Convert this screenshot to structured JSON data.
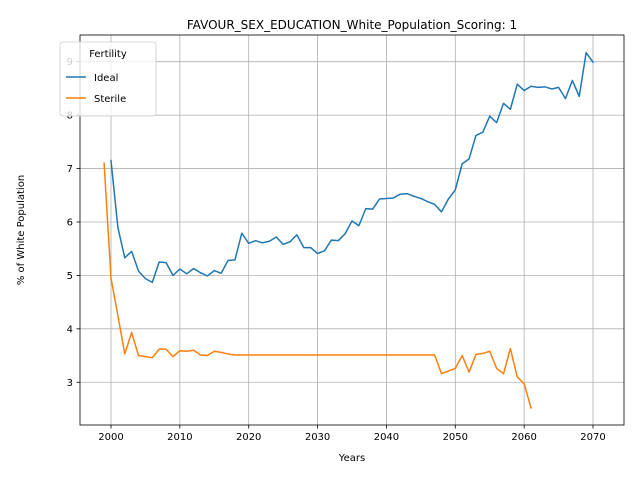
{
  "chart_data": {
    "type": "line",
    "title": "FAVOUR_SEX_EDUCATION_White_Population_Scoring: 1",
    "xlabel": "Years",
    "ylabel": "% of White Population",
    "xlim": [
      1995.5,
      2074.5
    ],
    "ylim": [
      2.2,
      9.5
    ],
    "xticks": [
      2000,
      2010,
      2020,
      2030,
      2040,
      2050,
      2060,
      2070
    ],
    "yticks": [
      3,
      4,
      5,
      6,
      7,
      8,
      9
    ],
    "grid": true,
    "legend": {
      "title": "Fertility",
      "position": "top-left"
    },
    "series": [
      {
        "name": "Ideal",
        "color": "#1f77b4",
        "x": [
          2000,
          2001,
          2002,
          2003,
          2004,
          2005,
          2006,
          2007,
          2008,
          2009,
          2010,
          2011,
          2012,
          2013,
          2014,
          2015,
          2016,
          2017,
          2018,
          2019,
          2020,
          2021,
          2022,
          2023,
          2024,
          2025,
          2026,
          2027,
          2028,
          2029,
          2030,
          2031,
          2032,
          2033,
          2034,
          2035,
          2036,
          2037,
          2038,
          2039,
          2040,
          2041,
          2042,
          2043,
          2044,
          2045,
          2046,
          2047,
          2048,
          2049,
          2050,
          2051,
          2052,
          2053,
          2054,
          2055,
          2056,
          2057,
          2058,
          2059,
          2060,
          2061,
          2062,
          2063,
          2064,
          2065,
          2066,
          2067,
          2068,
          2069,
          2070
        ],
        "y": [
          7.15,
          5.9,
          5.33,
          5.45,
          5.08,
          4.94,
          4.87,
          5.25,
          5.24,
          5.0,
          5.12,
          5.03,
          5.13,
          5.05,
          4.99,
          5.09,
          5.04,
          5.28,
          5.29,
          5.79,
          5.6,
          5.65,
          5.61,
          5.64,
          5.72,
          5.58,
          5.63,
          5.76,
          5.52,
          5.52,
          5.41,
          5.46,
          5.66,
          5.65,
          5.78,
          6.02,
          5.93,
          6.25,
          6.24,
          6.43,
          6.44,
          6.45,
          6.52,
          6.53,
          6.48,
          6.44,
          6.38,
          6.33,
          6.19,
          6.43,
          6.6,
          7.09,
          7.18,
          7.62,
          7.68,
          7.98,
          7.86,
          8.22,
          8.11,
          8.58,
          8.46,
          8.54,
          8.52,
          8.53,
          8.49,
          8.52,
          8.31,
          8.65,
          8.35,
          9.17,
          8.99
        ]
      },
      {
        "name": "Sterile",
        "color": "#ff7f0e",
        "x": [
          1999,
          2000,
          2001,
          2002,
          2003,
          2004,
          2005,
          2006,
          2007,
          2008,
          2009,
          2010,
          2011,
          2012,
          2013,
          2014,
          2015,
          2016,
          2017,
          2018,
          2019,
          2020,
          2021,
          2022,
          2023,
          2024,
          2025,
          2026,
          2027,
          2028,
          2029,
          2030,
          2031,
          2032,
          2033,
          2034,
          2035,
          2036,
          2037,
          2038,
          2039,
          2040,
          2041,
          2042,
          2043,
          2044,
          2045,
          2046,
          2047,
          2048,
          2049,
          2050,
          2051,
          2052,
          2053,
          2054,
          2055,
          2056,
          2057,
          2058,
          2059,
          2060,
          2061
        ],
        "y": [
          7.1,
          4.95,
          4.25,
          3.53,
          3.93,
          3.5,
          3.48,
          3.46,
          3.62,
          3.62,
          3.48,
          3.59,
          3.58,
          3.6,
          3.51,
          3.5,
          3.58,
          3.56,
          3.53,
          3.51,
          3.51,
          3.51,
          3.51,
          3.51,
          3.51,
          3.51,
          3.51,
          3.51,
          3.51,
          3.51,
          3.51,
          3.51,
          3.51,
          3.51,
          3.51,
          3.51,
          3.51,
          3.51,
          3.51,
          3.51,
          3.51,
          3.51,
          3.51,
          3.51,
          3.51,
          3.51,
          3.51,
          3.51,
          3.51,
          3.16,
          3.21,
          3.26,
          3.5,
          3.19,
          3.52,
          3.54,
          3.58,
          3.26,
          3.16,
          3.63,
          3.1,
          2.97,
          2.52
        ]
      }
    ]
  }
}
